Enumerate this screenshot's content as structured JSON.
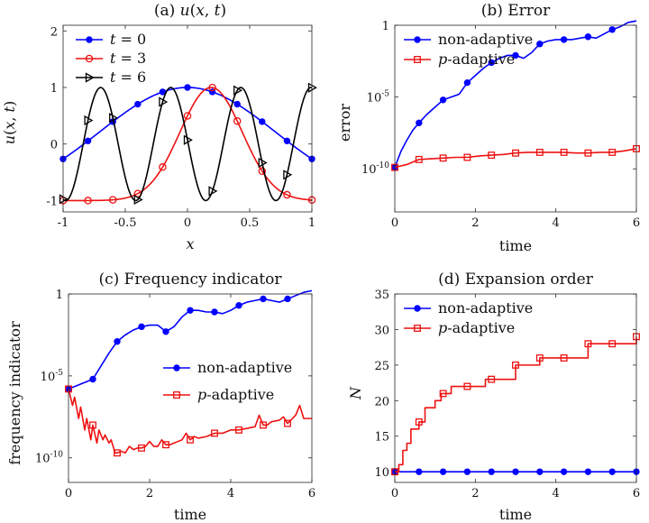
{
  "colors": {
    "blue": "#0000ff",
    "red": "#ee1111",
    "black": "#000000"
  },
  "chart_data": [
    {
      "id": "a",
      "type": "line",
      "title": "(a) u(x,t)",
      "xlabel": "x",
      "ylabel": "u(x,t)",
      "xlim": [
        -1,
        1
      ],
      "ylim": [
        -1.2,
        2.1
      ],
      "xticks": [
        -1,
        -0.5,
        0,
        0.5,
        1
      ],
      "xticklabels": [
        "-1",
        "-0.5",
        "0",
        "0.5",
        "1"
      ],
      "yticks": [
        -1,
        0,
        1,
        2
      ],
      "yticklabels": [
        "-1",
        "0",
        "1",
        "2"
      ],
      "legend_position": "top-left",
      "series": [
        {
          "name": "t = 0",
          "color": "#0000ff",
          "marker": "dot",
          "formula": "gauss",
          "center": 0,
          "k": 1.0,
          "marker_x": [
            -1,
            -0.8,
            -0.6,
            -0.4,
            -0.2,
            0,
            0.2,
            0.4,
            0.6,
            0.8,
            1
          ]
        },
        {
          "name": "t = 3",
          "color": "#ee1111",
          "marker": "circle",
          "formula": "gauss",
          "center": 0.19,
          "k": 8.0,
          "marker_x": [
            -1,
            -0.8,
            -0.6,
            -0.4,
            -0.2,
            0,
            0.2,
            0.4,
            0.6,
            0.8,
            1
          ]
        },
        {
          "name": "t = 6",
          "color": "#000000",
          "marker": "triangle",
          "formula": "sin",
          "freq": 3.55,
          "phase": 3.07,
          "marker_x": [
            -1,
            -0.8,
            -0.6,
            -0.4,
            -0.2,
            0,
            0.2,
            0.4,
            0.6,
            0.8,
            1
          ]
        }
      ],
      "legend": [
        {
          "label": "t = 0",
          "var": "t",
          "rest": " = 0",
          "color": "#0000ff",
          "marker": "dot"
        },
        {
          "label": "t = 3",
          "var": "t",
          "rest": " = 3",
          "color": "#ee1111",
          "marker": "circle"
        },
        {
          "label": "t = 6",
          "var": "t",
          "rest": " = 6",
          "color": "#000000",
          "marker": "triangle"
        }
      ]
    },
    {
      "id": "b",
      "type": "line",
      "title": "(b) Error",
      "xlabel": "time",
      "ylabel": "error",
      "yscale": "log",
      "xlim": [
        0,
        6
      ],
      "ylim_log10": [
        -13,
        0
      ],
      "xticks": [
        0,
        2,
        4,
        6
      ],
      "xticklabels": [
        "0",
        "2",
        "4",
        "6"
      ],
      "yticks_log10": [
        0,
        -5,
        -10
      ],
      "ytick_base": "10",
      "ytick_exps": [
        "",
        "-5",
        "-10"
      ],
      "ytick_plain": [
        "1",
        "",
        ""
      ],
      "legend_position": "top-left",
      "series": [
        {
          "name": "non-adaptive",
          "color": "#0000ff",
          "marker": "dot",
          "x": [
            0,
            0.15,
            0.3,
            0.45,
            0.6,
            0.8,
            1.0,
            1.2,
            1.4,
            1.6,
            1.8,
            2.0,
            2.2,
            2.4,
            2.6,
            2.8,
            3.0,
            3.2,
            3.4,
            3.6,
            3.8,
            4.0,
            4.2,
            4.4,
            4.6,
            4.8,
            5.0,
            5.2,
            5.4,
            5.6,
            5.8,
            6.0
          ],
          "log10": [
            -9.9,
            -8.8,
            -8.0,
            -7.3,
            -6.8,
            -6.2,
            -5.7,
            -5.2,
            -5.0,
            -4.8,
            -4.0,
            -3.5,
            -3.0,
            -2.6,
            -2.3,
            -2.1,
            -2.1,
            -2.3,
            -1.9,
            -1.3,
            -1.1,
            -1.0,
            -1.0,
            -1.0,
            -0.9,
            -0.8,
            -0.9,
            -0.6,
            -0.3,
            -0.1,
            0.2,
            0.3
          ],
          "marker_x": [
            0,
            0.6,
            1.2,
            1.8,
            2.4,
            3.0,
            3.6,
            4.2,
            4.8,
            5.4
          ]
        },
        {
          "name": "p-adaptive",
          "color": "#ee1111",
          "marker": "square",
          "x": [
            0,
            0.3,
            0.6,
            0.9,
            1.2,
            1.5,
            1.8,
            2.1,
            2.4,
            2.7,
            3.0,
            3.3,
            3.6,
            3.9,
            4.2,
            4.5,
            4.8,
            5.1,
            5.4,
            5.7,
            6.0
          ],
          "log10": [
            -9.9,
            -9.7,
            -9.35,
            -9.3,
            -9.25,
            -9.2,
            -9.2,
            -9.1,
            -9.05,
            -9.0,
            -8.9,
            -8.85,
            -8.85,
            -8.85,
            -8.85,
            -8.9,
            -8.9,
            -8.85,
            -8.85,
            -8.75,
            -8.6
          ],
          "marker_x": [
            0,
            0.6,
            1.2,
            1.8,
            2.4,
            3.0,
            3.6,
            4.2,
            4.8,
            5.4,
            6.0
          ]
        }
      ],
      "legend": [
        {
          "label": "non-adaptive",
          "var": "",
          "rest": "non-adaptive",
          "color": "#0000ff",
          "marker": "dot"
        },
        {
          "label": "p-adaptive",
          "var": "p",
          "rest": "-adaptive",
          "color": "#ee1111",
          "marker": "square"
        }
      ]
    },
    {
      "id": "c",
      "type": "line",
      "title": "(c) Frequency indicator",
      "xlabel": "time",
      "ylabel": "frequency indicator",
      "yscale": "log",
      "xlim": [
        0,
        6
      ],
      "ylim_log10": [
        -11.5,
        0
      ],
      "xticks": [
        0,
        2,
        4,
        6
      ],
      "xticklabels": [
        "0",
        "2",
        "4",
        "6"
      ],
      "yticks_log10": [
        0,
        -5,
        -10
      ],
      "ytick_base": "10",
      "ytick_exps": [
        "",
        "-5",
        "-10"
      ],
      "ytick_plain": [
        "1",
        "",
        ""
      ],
      "legend_position": "right",
      "series": [
        {
          "name": "non-adaptive",
          "color": "#0000ff",
          "marker": "dot",
          "x": [
            0,
            0.2,
            0.4,
            0.6,
            0.8,
            1.0,
            1.2,
            1.4,
            1.6,
            1.8,
            2.0,
            2.2,
            2.4,
            2.6,
            2.8,
            3.0,
            3.2,
            3.4,
            3.6,
            3.8,
            4.0,
            4.2,
            4.4,
            4.6,
            4.8,
            5.0,
            5.2,
            5.4,
            5.6,
            5.8,
            6.0
          ],
          "log10": [
            -5.8,
            -5.6,
            -5.4,
            -5.2,
            -4.4,
            -3.6,
            -2.9,
            -2.5,
            -2.2,
            -2.0,
            -1.9,
            -1.9,
            -2.3,
            -2.0,
            -1.4,
            -1.0,
            -1.0,
            -1.1,
            -1.1,
            -1.2,
            -1.0,
            -0.7,
            -0.5,
            -0.4,
            -0.3,
            -0.4,
            -0.5,
            -0.3,
            -0.1,
            0.1,
            0.2
          ],
          "marker_x": [
            0,
            0.6,
            1.2,
            1.8,
            2.4,
            3.0,
            3.6,
            4.2,
            4.8,
            5.4
          ]
        },
        {
          "name": "p-adaptive",
          "color": "#ee1111",
          "marker": "square",
          "x": [
            0,
            0.1,
            0.15,
            0.25,
            0.3,
            0.4,
            0.45,
            0.55,
            0.6,
            0.7,
            0.75,
            0.85,
            0.9,
            1.0,
            1.05,
            1.15,
            1.2,
            1.3,
            1.4,
            1.5,
            1.6,
            1.7,
            1.8,
            1.9,
            2.0,
            2.1,
            2.2,
            2.3,
            2.4,
            2.5,
            2.6,
            2.7,
            2.8,
            2.9,
            3.0,
            3.1,
            3.2,
            3.4,
            3.6,
            3.8,
            4.0,
            4.2,
            4.4,
            4.6,
            4.7,
            4.8,
            4.9,
            5.0,
            5.2,
            5.3,
            5.4,
            5.6,
            5.7,
            5.8,
            6.0
          ],
          "log10": [
            -5.8,
            -6.8,
            -6.3,
            -7.6,
            -6.9,
            -8.3,
            -7.6,
            -8.9,
            -8.0,
            -9.1,
            -8.3,
            -8.9,
            -8.6,
            -9.1,
            -8.9,
            -9.7,
            -9.7,
            -9.6,
            -9.7,
            -9.3,
            -9.5,
            -9.4,
            -9.4,
            -9.3,
            -9.0,
            -9.3,
            -9.3,
            -8.9,
            -9.2,
            -9.2,
            -9.1,
            -9.0,
            -8.9,
            -8.5,
            -8.9,
            -8.7,
            -8.8,
            -8.7,
            -8.5,
            -8.5,
            -8.3,
            -8.3,
            -8.2,
            -8.1,
            -7.4,
            -8.0,
            -8.0,
            -7.8,
            -7.7,
            -7.5,
            -7.9,
            -7.4,
            -6.8,
            -7.6,
            -7.6
          ],
          "marker_x": [
            0,
            0.6,
            1.2,
            1.8,
            2.4,
            3.0,
            3.6,
            4.2,
            4.8,
            5.4
          ]
        }
      ],
      "legend": [
        {
          "label": "non-adaptive",
          "var": "",
          "rest": "non-adaptive",
          "color": "#0000ff",
          "marker": "dot"
        },
        {
          "label": "p-adaptive",
          "var": "p",
          "rest": "-adaptive",
          "color": "#ee1111",
          "marker": "square"
        }
      ]
    },
    {
      "id": "d",
      "type": "line",
      "title": "(d) Expansion order",
      "xlabel": "time",
      "ylabel": "N",
      "xlim": [
        0,
        6
      ],
      "ylim": [
        8.5,
        35
      ],
      "xticks": [
        0,
        2,
        4,
        6
      ],
      "xticklabels": [
        "0",
        "2",
        "4",
        "6"
      ],
      "yticks": [
        10,
        15,
        20,
        25,
        30,
        35
      ],
      "yticklabels": [
        "10",
        "15",
        "20",
        "25",
        "30",
        "35"
      ],
      "legend_position": "top-left",
      "series": [
        {
          "name": "non-adaptive",
          "color": "#0000ff",
          "marker": "dot",
          "step": false,
          "x": [
            0,
            6
          ],
          "values": [
            10,
            10
          ],
          "marker_x": [
            0,
            0.6,
            1.2,
            1.8,
            2.4,
            3.0,
            3.6,
            4.2,
            4.8,
            5.4,
            6.0
          ]
        },
        {
          "name": "p-adaptive",
          "color": "#ee1111",
          "marker": "square",
          "step": true,
          "x": [
            0,
            0.1,
            0.2,
            0.3,
            0.4,
            0.5,
            0.6,
            0.75,
            1.0,
            1.15,
            1.4,
            1.75,
            2.25,
            2.5,
            3.0,
            3.6,
            4.2,
            4.8,
            5.4,
            6.0
          ],
          "values": [
            10,
            11,
            13,
            14,
            16,
            16,
            17,
            19,
            20,
            21,
            22,
            22,
            23,
            23,
            25,
            26,
            26,
            28,
            28,
            29
          ],
          "marker_x": [
            0,
            0.6,
            1.2,
            1.8,
            2.4,
            3.0,
            3.6,
            4.2,
            4.8,
            5.4,
            6.0
          ]
        }
      ],
      "legend": [
        {
          "label": "non-adaptive",
          "var": "",
          "rest": "non-adaptive",
          "color": "#0000ff",
          "marker": "dot"
        },
        {
          "label": "p-adaptive",
          "var": "p",
          "rest": "-adaptive",
          "color": "#ee1111",
          "marker": "square"
        }
      ]
    }
  ]
}
